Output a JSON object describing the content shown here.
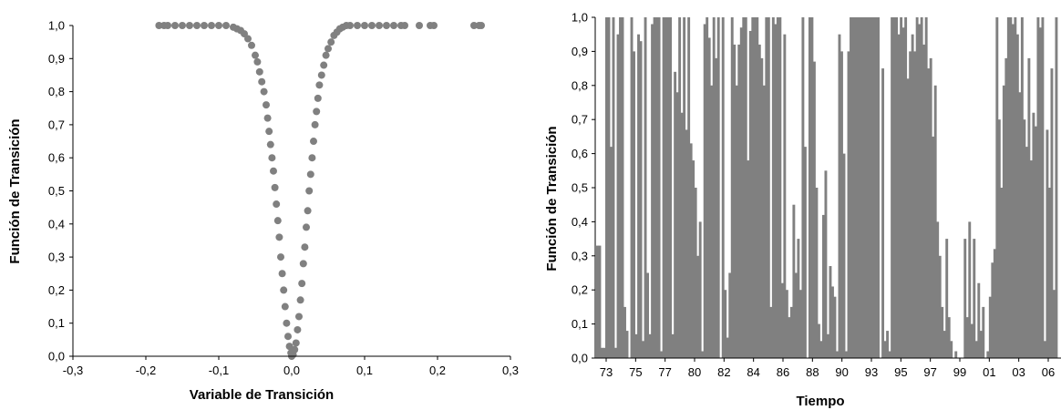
{
  "chart_data": [
    {
      "type": "scatter",
      "xlabel": "Variable de Transición",
      "ylabel": "Función de Transición",
      "xlim": [
        -0.3,
        0.3
      ],
      "ylim": [
        0,
        1
      ],
      "x_ticks": [
        "-0,3",
        "-0,2",
        "-0,1",
        "0,0",
        "0,1",
        "0,2",
        "0,3"
      ],
      "y_ticks": [
        "0,0",
        "0,1",
        "0,2",
        "0,3",
        "0,4",
        "0,5",
        "0,6",
        "0,7",
        "0,8",
        "0,9",
        "1,0"
      ],
      "marker_color": "#808080",
      "points": [
        [
          -0.182,
          1.0
        ],
        [
          -0.175,
          1.0
        ],
        [
          -0.17,
          1.0
        ],
        [
          -0.16,
          1.0
        ],
        [
          -0.15,
          1.0
        ],
        [
          -0.14,
          1.0
        ],
        [
          -0.13,
          1.0
        ],
        [
          -0.12,
          1.0
        ],
        [
          -0.11,
          1.0
        ],
        [
          -0.1,
          1.0
        ],
        [
          -0.09,
          1.0
        ],
        [
          -0.08,
          0.995
        ],
        [
          -0.075,
          0.99
        ],
        [
          -0.07,
          0.985
        ],
        [
          -0.065,
          0.975
        ],
        [
          -0.06,
          0.96
        ],
        [
          -0.055,
          0.94
        ],
        [
          -0.05,
          0.91
        ],
        [
          -0.047,
          0.89
        ],
        [
          -0.044,
          0.86
        ],
        [
          -0.041,
          0.83
        ],
        [
          -0.038,
          0.8
        ],
        [
          -0.035,
          0.76
        ],
        [
          -0.033,
          0.72
        ],
        [
          -0.031,
          0.68
        ],
        [
          -0.029,
          0.64
        ],
        [
          -0.027,
          0.6
        ],
        [
          -0.025,
          0.56
        ],
        [
          -0.023,
          0.51
        ],
        [
          -0.021,
          0.46
        ],
        [
          -0.019,
          0.41
        ],
        [
          -0.017,
          0.36
        ],
        [
          -0.015,
          0.3
        ],
        [
          -0.013,
          0.25
        ],
        [
          -0.011,
          0.2
        ],
        [
          -0.009,
          0.15
        ],
        [
          -0.007,
          0.1
        ],
        [
          -0.005,
          0.06
        ],
        [
          -0.003,
          0.03
        ],
        [
          -0.001,
          0.01
        ],
        [
          0.0,
          0.0
        ],
        [
          0.002,
          0.005
        ],
        [
          0.004,
          0.02
        ],
        [
          0.006,
          0.04
        ],
        [
          0.008,
          0.08
        ],
        [
          0.01,
          0.12
        ],
        [
          0.012,
          0.17
        ],
        [
          0.014,
          0.22
        ],
        [
          0.016,
          0.28
        ],
        [
          0.018,
          0.33
        ],
        [
          0.02,
          0.39
        ],
        [
          0.022,
          0.44
        ],
        [
          0.024,
          0.5
        ],
        [
          0.026,
          0.55
        ],
        [
          0.028,
          0.6
        ],
        [
          0.03,
          0.65
        ],
        [
          0.032,
          0.7
        ],
        [
          0.034,
          0.74
        ],
        [
          0.036,
          0.78
        ],
        [
          0.038,
          0.82
        ],
        [
          0.041,
          0.85
        ],
        [
          0.044,
          0.88
        ],
        [
          0.047,
          0.91
        ],
        [
          0.05,
          0.93
        ],
        [
          0.054,
          0.95
        ],
        [
          0.058,
          0.97
        ],
        [
          0.062,
          0.98
        ],
        [
          0.066,
          0.99
        ],
        [
          0.07,
          0.995
        ],
        [
          0.075,
          1.0
        ],
        [
          0.08,
          1.0
        ],
        [
          0.09,
          1.0
        ],
        [
          0.1,
          1.0
        ],
        [
          0.11,
          1.0
        ],
        [
          0.12,
          1.0
        ],
        [
          0.13,
          1.0
        ],
        [
          0.14,
          1.0
        ],
        [
          0.15,
          1.0
        ],
        [
          0.155,
          1.0
        ],
        [
          0.175,
          1.0
        ],
        [
          0.19,
          1.0
        ],
        [
          0.195,
          1.0
        ],
        [
          0.25,
          1.0
        ],
        [
          0.257,
          1.0
        ],
        [
          0.26,
          1.0
        ]
      ]
    },
    {
      "type": "bar",
      "xlabel": "Tiempo",
      "ylabel": "Función de Transición",
      "ylim": [
        0,
        1
      ],
      "y_ticks": [
        "0,0",
        "0,1",
        "0,2",
        "0,3",
        "0,4",
        "0,5",
        "0,6",
        "0,7",
        "0,8",
        "0,9",
        "1,0"
      ],
      "x_ticks": [
        "73",
        "75",
        "77",
        "80",
        "82",
        "84",
        "86",
        "88",
        "90",
        "93",
        "95",
        "97",
        "99",
        "01",
        "03",
        "06"
      ],
      "bar_color": "#808080",
      "values": [
        0.33,
        0.33,
        0.03,
        0.03,
        1.0,
        1.0,
        0.62,
        1.0,
        0.03,
        0.95,
        1.0,
        1.0,
        0.15,
        0.08,
        0.0,
        1.0,
        0.9,
        0.07,
        0.95,
        0.93,
        0.05,
        1.0,
        0.25,
        0.07,
        0.98,
        1.0,
        1.0,
        1.0,
        0.02,
        1.0,
        1.0,
        1.0,
        1.0,
        0.07,
        0.84,
        0.78,
        1.0,
        0.72,
        1.0,
        0.67,
        1.0,
        0.63,
        0.58,
        0.5,
        0.3,
        0.4,
        0.02,
        0.98,
        1.0,
        0.94,
        0.8,
        1.0,
        0.88,
        1.0,
        0.0,
        1.0,
        0.2,
        0.06,
        0.25,
        1.0,
        0.92,
        0.8,
        0.92,
        0.97,
        1.0,
        1.0,
        0.58,
        0.96,
        1.0,
        1.0,
        1.0,
        0.92,
        0.88,
        0.8,
        1.0,
        1.0,
        0.15,
        1.0,
        0.98,
        1.0,
        1.0,
        0.22,
        0.95,
        0.2,
        0.12,
        0.15,
        0.45,
        0.25,
        0.35,
        0.2,
        1.0,
        0.62,
        0.0,
        1.0,
        1.0,
        0.87,
        0.5,
        0.1,
        0.05,
        0.42,
        0.55,
        0.07,
        0.27,
        0.21,
        0.18,
        0.02,
        0.95,
        0.9,
        0.6,
        0.02,
        0.9,
        1.0,
        1.0,
        1.0,
        1.0,
        1.0,
        1.0,
        1.0,
        1.0,
        1.0,
        1.0,
        1.0,
        1.0,
        1.0,
        0.0,
        0.85,
        0.05,
        0.08,
        0.02,
        1.0,
        1.0,
        1.0,
        0.95,
        1.0,
        0.97,
        1.0,
        0.82,
        0.9,
        0.95,
        0.9,
        1.0,
        0.98,
        1.0,
        0.92,
        1.0,
        0.85,
        0.88,
        0.65,
        0.8,
        0.4,
        0.3,
        0.15,
        0.08,
        0.35,
        0.12,
        0.05,
        0.0,
        0.02,
        0.0,
        0.0,
        0.0,
        0.35,
        0.12,
        0.4,
        0.1,
        0.35,
        0.05,
        0.22,
        0.08,
        0.15,
        0.0,
        0.02,
        0.18,
        0.28,
        0.32,
        1.0,
        0.7,
        0.5,
        0.8,
        0.88,
        1.0,
        1.0,
        0.98,
        1.0,
        0.95,
        0.78,
        1.0,
        0.7,
        0.62,
        0.88,
        0.58,
        0.72,
        0.68,
        1.0,
        0.97,
        1.0,
        0.05,
        0.67,
        0.5,
        0.85,
        0.2,
        1.0
      ]
    }
  ]
}
